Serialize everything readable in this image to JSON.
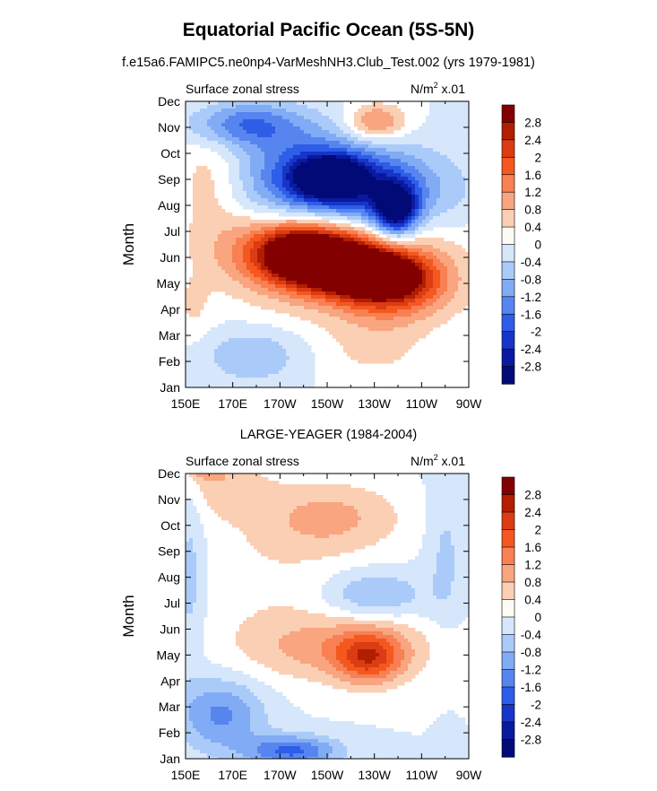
{
  "title": "Equatorial Pacific Ocean (5S-5N)",
  "subtitle": "f.e15a6.FAMIPC5.ne0np4-VarMeshNH3.Club_Test.002 (yrs 1979-1981)",
  "chart_data": [
    {
      "type": "heatmap",
      "title": "f.e15a6.FAMIPC5.ne0np4-VarMeshNH3.Club_Test.002 (yrs 1979-1981)",
      "left_label": "Surface zonal stress",
      "right_label": "N/m",
      "right_label_sup": "2",
      "right_label_tail": " x.01",
      "xlabel": "",
      "ylabel": "Month",
      "x_ticks": [
        "150E",
        "170E",
        "170W",
        "150W",
        "130W",
        "110W",
        "90W"
      ],
      "y_ticks": [
        "Jan",
        "Feb",
        "Mar",
        "Apr",
        "May",
        "Jun",
        "Jul",
        "Aug",
        "Sep",
        "Oct",
        "Nov",
        "Dec"
      ],
      "colorbar_labels": [
        "2.8",
        "2.4",
        "2",
        "1.6",
        "1.2",
        "0.8",
        "0.4",
        "0",
        "-0.4",
        "-0.8",
        "-1.2",
        "-1.6",
        "-2",
        "-2.4",
        "-2.8"
      ],
      "colorbar_colors": [
        "#830000",
        "#b31e00",
        "#db3c14",
        "#f4581f",
        "#f88053",
        "#f9a580",
        "#fbcfb4",
        "#fdfbf5",
        "#d6e6fb",
        "#aacbf9",
        "#82abf5",
        "#5785f0",
        "#2e5de8",
        "#1735c8",
        "#0a1aa0",
        "#020a78"
      ],
      "features": [
        {
          "lon": 218,
          "month": 4.6,
          "value": 2.9,
          "rlon": 18,
          "rmonth": 0.6
        },
        {
          "lon": 202,
          "month": 5.1,
          "value": 2.7,
          "rlon": 20,
          "rmonth": 1.0
        },
        {
          "lon": 232,
          "month": 4.2,
          "value": 2.6,
          "rlon": 20,
          "rmonth": 0.9
        },
        {
          "lon": 216,
          "month": 4.8,
          "value": 2.0,
          "rlon": 42,
          "rmonth": 1.7
        },
        {
          "lon": 196,
          "month": 5.5,
          "value": 1.0,
          "rlon": 28,
          "rmonth": 1.3
        },
        {
          "lon": 240,
          "month": 3.6,
          "value": 1.0,
          "rlon": 24,
          "rmonth": 1.3
        },
        {
          "lon": 212,
          "month": 8.1,
          "value": -3.0,
          "rlon": 13,
          "rmonth": 0.7
        },
        {
          "lon": 239,
          "month": 6.8,
          "value": -3.0,
          "rlon": 9,
          "rmonth": 1.0
        },
        {
          "lon": 222,
          "month": 7.6,
          "value": -2.3,
          "rlon": 36,
          "rmonth": 1.6
        },
        {
          "lon": 200,
          "month": 8.4,
          "value": -1.1,
          "rlon": 24,
          "rmonth": 1.6
        },
        {
          "lon": 175,
          "month": 10.1,
          "value": -1.6,
          "rlon": 24,
          "rmonth": 0.9
        },
        {
          "lon": 231,
          "month": 10.2,
          "value": 1.4,
          "rlon": 12,
          "rmonth": 0.7
        },
        {
          "lon": 160,
          "month": 8.0,
          "value": 0.6,
          "rlon": 14,
          "rmonth": 2.5
        },
        {
          "lon": 178,
          "month": 1.2,
          "value": -0.8,
          "rlon": 20,
          "rmonth": 1.0
        },
        {
          "lon": 230,
          "month": 1.5,
          "value": 0.5,
          "rlon": 22,
          "rmonth": 1.2
        },
        {
          "lon": 153,
          "month": 3.0,
          "value": 0.4,
          "rlon": 8,
          "rmonth": 1.2
        }
      ]
    },
    {
      "type": "heatmap",
      "title": "LARGE-YEAGER (1984-2004)",
      "left_label": "Surface zonal stress",
      "right_label": "N/m",
      "right_label_sup": "2",
      "right_label_tail": " x.01",
      "xlabel": "",
      "ylabel": "Month",
      "x_ticks": [
        "150E",
        "170E",
        "170W",
        "150W",
        "130W",
        "110W",
        "90W"
      ],
      "y_ticks": [
        "Jan",
        "Feb",
        "Mar",
        "Apr",
        "May",
        "Jun",
        "Jul",
        "Aug",
        "Sep",
        "Oct",
        "Nov",
        "Dec"
      ],
      "colorbar_labels": [
        "2.8",
        "2.4",
        "2",
        "1.6",
        "1.2",
        "0.8",
        "0.4",
        "0",
        "-0.4",
        "-0.8",
        "-1.2",
        "-1.6",
        "-2",
        "-2.4",
        "-2.8"
      ],
      "colorbar_colors": [
        "#830000",
        "#b31e00",
        "#db3c14",
        "#f4581f",
        "#f88053",
        "#f9a580",
        "#fbcfb4",
        "#fdfbf5",
        "#d6e6fb",
        "#aacbf9",
        "#82abf5",
        "#5785f0",
        "#2e5de8",
        "#1735c8",
        "#0a1aa0",
        "#020a78"
      ],
      "features": [
        {
          "lon": 157,
          "month": 11.6,
          "value": 2.1,
          "rlon": 7,
          "rmonth": 0.6
        },
        {
          "lon": 168,
          "month": 10.7,
          "value": 0.7,
          "rlon": 18,
          "rmonth": 1.3
        },
        {
          "lon": 212,
          "month": 9.3,
          "value": 0.9,
          "rlon": 30,
          "rmonth": 1.4
        },
        {
          "lon": 228,
          "month": 3.9,
          "value": 1.7,
          "rlon": 14,
          "rmonth": 1.0
        },
        {
          "lon": 215,
          "month": 4.3,
          "value": 1.0,
          "rlon": 40,
          "rmonth": 1.3
        },
        {
          "lon": 185,
          "month": 7.0,
          "value": 0.3,
          "rlon": 30,
          "rmonth": 3.0
        },
        {
          "lon": 165,
          "month": 1.7,
          "value": -1.3,
          "rlon": 18,
          "rmonth": 1.4
        },
        {
          "lon": 195,
          "month": 0.3,
          "value": -1.7,
          "rlon": 20,
          "rmonth": 0.6
        },
        {
          "lon": 230,
          "month": 6.3,
          "value": -0.9,
          "rlon": 20,
          "rmonth": 0.9
        },
        {
          "lon": 205,
          "month": 11.7,
          "value": -1.1,
          "rlon": 30,
          "rmonth": 0.6
        },
        {
          "lon": 152,
          "month": 7.0,
          "value": -0.6,
          "rlon": 6,
          "rmonth": 3.5
        },
        {
          "lon": 260,
          "month": 8.0,
          "value": -0.5,
          "rlon": 8,
          "rmonth": 3.0
        }
      ]
    }
  ]
}
